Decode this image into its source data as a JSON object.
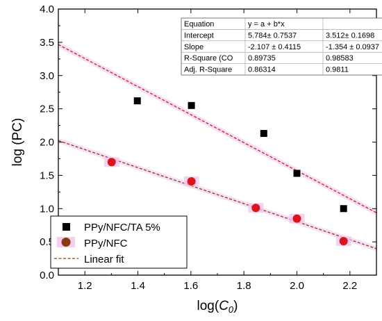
{
  "chart_data": {
    "type": "scatter",
    "xlabel_prefix": "log(",
    "xlabel_var": "C",
    "xlabel_sub": "0",
    "xlabel_suffix": ")",
    "ylabel": "log (PC)",
    "xlim": [
      1.1,
      2.3
    ],
    "ylim": [
      0.0,
      4.0
    ],
    "x_ticks": [
      "1.2",
      "1.4",
      "1.6",
      "1.8",
      "2.0",
      "2.2"
    ],
    "y_ticks": [
      "0.0",
      "0.5",
      "1.0",
      "1.5",
      "2.0",
      "2.5",
      "3.0",
      "3.5",
      "4.0"
    ],
    "legend_position": "bottom-left",
    "series": [
      {
        "name": "PPy/NFC/TA 5%",
        "marker": "square",
        "color": "#000000",
        "x": [
          1.398,
          1.602,
          1.875,
          2.0,
          2.176
        ],
        "y": [
          2.62,
          2.55,
          2.13,
          1.53,
          1.0
        ]
      },
      {
        "name": "PPy/NFC",
        "marker": "circle",
        "color": "#d9141b",
        "legend_color": "#8b3a0e",
        "x": [
          1.301,
          1.602,
          1.845,
          2.0,
          2.176
        ],
        "y": [
          1.7,
          1.41,
          1.01,
          0.85,
          0.51
        ]
      }
    ],
    "fits": [
      {
        "name": "Linear fit",
        "intercept": 5.784,
        "slope": -2.107,
        "color": "#d9141b",
        "x_range": [
          1.1,
          2.3
        ]
      },
      {
        "name": "",
        "intercept": 3.512,
        "slope": -1.354,
        "color": "#8b3a0e",
        "x_range": [
          1.1,
          2.3
        ]
      }
    ],
    "stats_table": {
      "rows": [
        [
          "Equation",
          "y = a + b*x",
          ""
        ],
        [
          "Intercept",
          "5.784± 0.7537",
          "3.512± 0.1698"
        ],
        [
          "Slope",
          "-2.107 ± 0.4115",
          "-1.354 ± 0.0937"
        ],
        [
          "R-Square (CO",
          "0.89735",
          "0.98583"
        ],
        [
          "Adj. R-Square",
          "0.86314",
          "0.9811"
        ]
      ]
    }
  }
}
